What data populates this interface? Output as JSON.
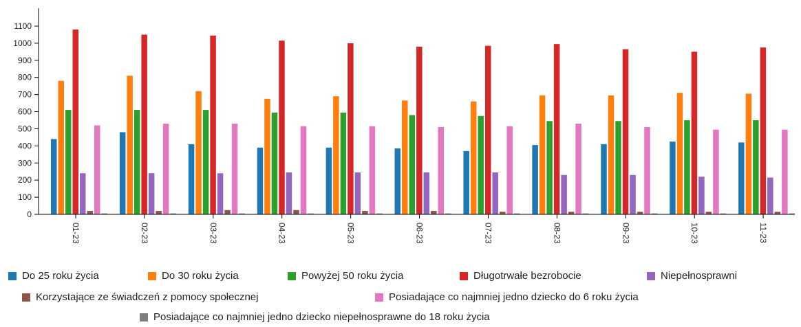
{
  "chart_data": {
    "type": "bar",
    "categories": [
      "01-23",
      "02-23",
      "03-23",
      "04-23",
      "05-23",
      "06-23",
      "07-23",
      "08-23",
      "09-23",
      "10-23",
      "11-23"
    ],
    "ylim": [
      0,
      1100
    ],
    "yticks": [
      0,
      100,
      200,
      300,
      400,
      500,
      600,
      700,
      800,
      900,
      1000,
      1100
    ],
    "grid": false,
    "legend_position": "bottom",
    "series": [
      {
        "name": "Do 25 roku życia",
        "color": "#1f77b4",
        "values": [
          440,
          480,
          410,
          390,
          390,
          385,
          370,
          405,
          410,
          425,
          420
        ]
      },
      {
        "name": "Do 30 roku życia",
        "color": "#ff7f0e",
        "values": [
          780,
          810,
          720,
          675,
          690,
          665,
          660,
          695,
          695,
          710,
          705
        ]
      },
      {
        "name": "Powyżej 50 roku życia",
        "color": "#2ca02c",
        "values": [
          610,
          610,
          610,
          595,
          595,
          580,
          575,
          545,
          545,
          550,
          550
        ]
      },
      {
        "name": "Długotrwałe bezrobocie",
        "color": "#d62728",
        "values": [
          1080,
          1050,
          1045,
          1015,
          1000,
          980,
          985,
          995,
          965,
          950,
          975
        ]
      },
      {
        "name": "Niepełnosprawni",
        "color": "#9467bd",
        "values": [
          240,
          240,
          240,
          245,
          245,
          245,
          245,
          230,
          230,
          220,
          215
        ]
      },
      {
        "name": "Korzystające ze świadczeń z pomocy społecznej",
        "color": "#8c564b",
        "values": [
          20,
          20,
          25,
          25,
          20,
          20,
          15,
          15,
          15,
          15,
          15
        ]
      },
      {
        "name": "Posiadające co najmniej jedno dziecko do 6 roku życia",
        "color": "#e377c2",
        "values": [
          520,
          530,
          530,
          515,
          515,
          510,
          515,
          530,
          510,
          495,
          495
        ]
      },
      {
        "name": "Posiadające co najmniej jedno dziecko niepełnosprawne do 18 roku życia",
        "color": "#7f7f7f",
        "values": [
          5,
          5,
          5,
          5,
          5,
          5,
          5,
          5,
          5,
          5,
          5
        ]
      }
    ]
  }
}
